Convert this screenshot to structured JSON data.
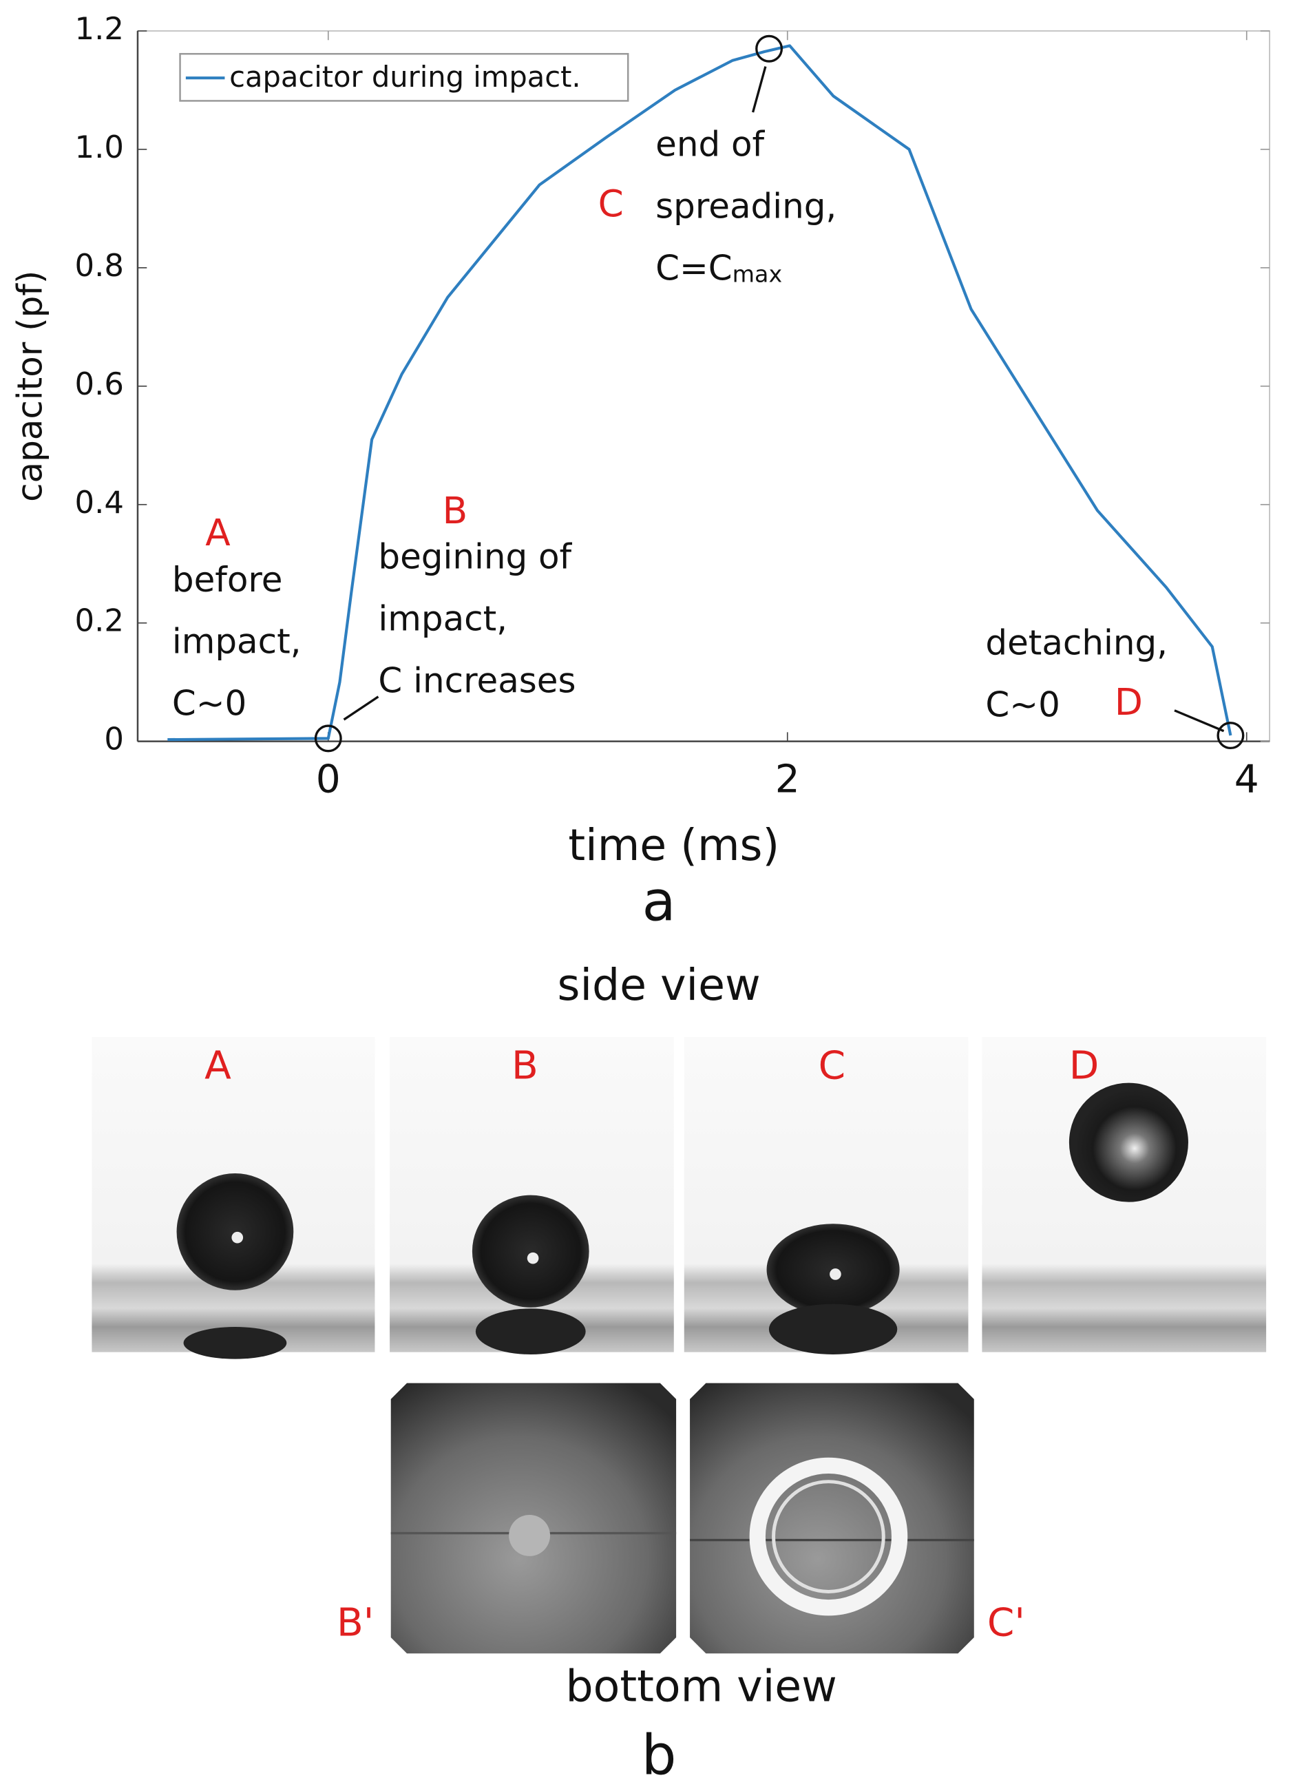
{
  "chart_data": {
    "type": "line",
    "x": [
      -0.7,
      0,
      0.05,
      0.1,
      0.19,
      0.32,
      0.52,
      0.92,
      1.21,
      1.51,
      1.76,
      1.9,
      2.01,
      2.2,
      2.53,
      2.8,
      3.35,
      3.65,
      3.85,
      3.93
    ],
    "series": [
      {
        "name": "capacitor during impact.",
        "color": "#2e7fc0",
        "values": [
          0.003,
          0.005,
          0.1,
          0.25,
          0.51,
          0.62,
          0.75,
          0.94,
          1.02,
          1.1,
          1.15,
          1.165,
          1.175,
          1.09,
          1.0,
          0.73,
          0.39,
          0.26,
          0.16,
          0.01
        ]
      }
    ],
    "xlim": [
      -0.83,
      4.1
    ],
    "ylim": [
      0,
      1.2
    ],
    "xticks": [
      0,
      2,
      4
    ],
    "yticks": [
      0,
      0.2,
      0.4,
      0.6,
      0.8,
      {
        "value": 1.0,
        "label": "1.0"
      },
      1.2
    ],
    "xlabel": "time (ms)",
    "ylabel": "capacitor (pf)",
    "legend": "upper left",
    "grid": false,
    "markers": {
      "x": [
        0,
        1.92,
        3.93
      ],
      "y": [
        0.005,
        1.17,
        0.01
      ]
    },
    "annotations": [
      {
        "letter": "A",
        "text": [
          "before",
          "impact,",
          "C~0"
        ]
      },
      {
        "letter": "B",
        "text": [
          "begining of",
          "impact,",
          "C increases"
        ]
      },
      {
        "letter": "C",
        "text": [
          "end of",
          "spreading,"
        ],
        "formula": {
          "base": "C=C",
          "sub": "max"
        }
      },
      {
        "letter": "D",
        "text": [
          "detaching,",
          "C~0"
        ]
      }
    ],
    "panel_label": "a"
  },
  "panel_b": {
    "title": "side view",
    "frames": [
      "A",
      "B",
      "C",
      "D"
    ],
    "bottom_title": "bottom view",
    "bottom_frames": [
      "B'",
      "C'"
    ],
    "panel_label": "b"
  }
}
